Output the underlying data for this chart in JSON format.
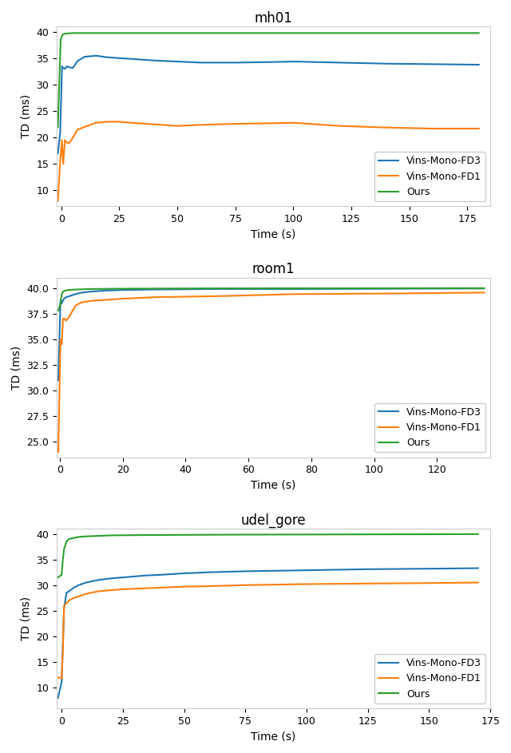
{
  "plots": [
    {
      "title": "mh01",
      "xlabel": "Time (s)",
      "ylabel": "TD (ms)",
      "xlim": [
        -2,
        185
      ],
      "ylim": [
        7,
        41
      ],
      "xticks": [
        0,
        25,
        50,
        75,
        100,
        125,
        150,
        175
      ],
      "yticks": [
        10,
        15,
        20,
        25,
        30,
        35,
        40
      ],
      "series": {
        "fd3": {
          "points": [
            [
              -1.5,
              17.0
            ],
            [
              -0.5,
              21.0
            ],
            [
              0.3,
              33.5
            ],
            [
              0.8,
              33.2
            ],
            [
              1.5,
              33.0
            ],
            [
              2.5,
              33.5
            ],
            [
              3.5,
              33.3
            ],
            [
              5.0,
              33.2
            ],
            [
              7.0,
              34.5
            ],
            [
              10.0,
              35.3
            ],
            [
              15.0,
              35.5
            ],
            [
              20.0,
              35.2
            ],
            [
              30.0,
              34.9
            ],
            [
              40.0,
              34.6
            ],
            [
              50.0,
              34.4
            ],
            [
              60.0,
              34.2
            ],
            [
              75.0,
              34.2
            ],
            [
              90.0,
              34.3
            ],
            [
              100.0,
              34.4
            ],
            [
              120.0,
              34.2
            ],
            [
              140.0,
              34.0
            ],
            [
              160.0,
              33.9
            ],
            [
              180.0,
              33.8
            ]
          ],
          "color": "#1f77b4"
        },
        "fd1": {
          "points": [
            [
              -1.5,
              8.0
            ],
            [
              -0.5,
              15.5
            ],
            [
              0.2,
              19.5
            ],
            [
              0.8,
              15.0
            ],
            [
              1.5,
              19.5
            ],
            [
              2.5,
              19.0
            ],
            [
              3.5,
              19.0
            ],
            [
              5.0,
              20.0
            ],
            [
              7.0,
              21.5
            ],
            [
              10.0,
              22.0
            ],
            [
              15.0,
              22.8
            ],
            [
              20.0,
              23.0
            ],
            [
              25.0,
              23.0
            ],
            [
              30.0,
              22.8
            ],
            [
              40.0,
              22.5
            ],
            [
              50.0,
              22.2
            ],
            [
              60.0,
              22.4
            ],
            [
              75.0,
              22.6
            ],
            [
              90.0,
              22.7
            ],
            [
              100.0,
              22.8
            ],
            [
              120.0,
              22.2
            ],
            [
              140.0,
              21.9
            ],
            [
              160.0,
              21.7
            ],
            [
              180.0,
              21.7
            ]
          ],
          "color": "#ff7f0e"
        },
        "ours": {
          "points": [
            [
              -1.5,
              22.0
            ],
            [
              -0.3,
              38.5
            ],
            [
              0.5,
              39.5
            ],
            [
              1.0,
              39.6
            ],
            [
              2.0,
              39.7
            ],
            [
              5.0,
              39.8
            ],
            [
              10.0,
              39.8
            ],
            [
              30.0,
              39.8
            ],
            [
              60.0,
              39.8
            ],
            [
              100.0,
              39.8
            ],
            [
              140.0,
              39.8
            ],
            [
              180.0,
              39.8
            ]
          ],
          "color": "#2ca02c"
        }
      }
    },
    {
      "title": "room1",
      "xlabel": "Time (s)",
      "ylabel": "TD (ms)",
      "xlim": [
        -1,
        137
      ],
      "ylim": [
        23.5,
        41
      ],
      "xticks": [
        0,
        20,
        40,
        60,
        80,
        100,
        120
      ],
      "yticks": [
        25.0,
        27.5,
        30.0,
        32.5,
        35.0,
        37.5,
        40.0
      ],
      "series": {
        "fd3": {
          "points": [
            [
              -0.5,
              31.0
            ],
            [
              0.2,
              38.8
            ],
            [
              0.6,
              38.5
            ],
            [
              1.0,
              38.8
            ],
            [
              1.5,
              39.0
            ],
            [
              2.0,
              39.1
            ],
            [
              3.0,
              39.2
            ],
            [
              5.0,
              39.4
            ],
            [
              7.0,
              39.55
            ],
            [
              10.0,
              39.65
            ],
            [
              15.0,
              39.75
            ],
            [
              20.0,
              39.8
            ],
            [
              30.0,
              39.85
            ],
            [
              50.0,
              39.9
            ],
            [
              75.0,
              39.9
            ],
            [
              100.0,
              39.92
            ],
            [
              120.0,
              39.94
            ],
            [
              135.0,
              39.95
            ]
          ],
          "color": "#1f77b4"
        },
        "fd1": {
          "points": [
            [
              -0.5,
              24.0
            ],
            [
              0.2,
              35.0
            ],
            [
              0.6,
              34.5
            ],
            [
              1.0,
              37.0
            ],
            [
              1.5,
              37.0
            ],
            [
              2.0,
              36.8
            ],
            [
              3.0,
              37.2
            ],
            [
              5.0,
              38.3
            ],
            [
              7.0,
              38.6
            ],
            [
              10.0,
              38.75
            ],
            [
              15.0,
              38.85
            ],
            [
              20.0,
              38.95
            ],
            [
              30.0,
              39.1
            ],
            [
              50.0,
              39.2
            ],
            [
              75.0,
              39.4
            ],
            [
              100.0,
              39.45
            ],
            [
              120.0,
              39.5
            ],
            [
              135.0,
              39.55
            ]
          ],
          "color": "#ff7f0e"
        },
        "ours": {
          "points": [
            [
              -0.5,
              37.8
            ],
            [
              0.2,
              38.5
            ],
            [
              0.6,
              39.4
            ],
            [
              1.0,
              39.65
            ],
            [
              2.0,
              39.78
            ],
            [
              5.0,
              39.85
            ],
            [
              10.0,
              39.9
            ],
            [
              20.0,
              39.93
            ],
            [
              50.0,
              39.96
            ],
            [
              100.0,
              39.97
            ],
            [
              135.0,
              39.98
            ]
          ],
          "color": "#2ca02c"
        }
      }
    },
    {
      "title": "udel_gore",
      "xlabel": "Time (s)",
      "ylabel": "TD (ms)",
      "xlim": [
        -2,
        175
      ],
      "ylim": [
        6,
        41
      ],
      "xticks": [
        0,
        25,
        50,
        75,
        100,
        125,
        150,
        175
      ],
      "yticks": [
        10,
        15,
        20,
        25,
        30,
        35,
        40
      ],
      "series": {
        "fd3": {
          "points": [
            [
              -1.5,
              8.0
            ],
            [
              0.0,
              11.0
            ],
            [
              0.5,
              18.5
            ],
            [
              1.0,
              25.5
            ],
            [
              2.0,
              28.5
            ],
            [
              3.0,
              28.8
            ],
            [
              5.0,
              29.5
            ],
            [
              7.0,
              30.0
            ],
            [
              10.0,
              30.5
            ],
            [
              15.0,
              31.0
            ],
            [
              20.0,
              31.3
            ],
            [
              25.0,
              31.5
            ],
            [
              30.0,
              31.7
            ],
            [
              35.0,
              31.9
            ],
            [
              40.0,
              32.0
            ],
            [
              50.0,
              32.3
            ],
            [
              60.0,
              32.5
            ],
            [
              75.0,
              32.7
            ],
            [
              100.0,
              32.9
            ],
            [
              125.0,
              33.1
            ],
            [
              150.0,
              33.2
            ],
            [
              170.0,
              33.3
            ]
          ],
          "color": "#1f77b4"
        },
        "fd1": {
          "points": [
            [
              -1.5,
              12.0
            ],
            [
              0.0,
              11.8
            ],
            [
              0.5,
              17.0
            ],
            [
              1.0,
              26.0
            ],
            [
              2.0,
              26.5
            ],
            [
              3.0,
              27.0
            ],
            [
              5.0,
              27.5
            ],
            [
              7.0,
              27.8
            ],
            [
              10.0,
              28.3
            ],
            [
              15.0,
              28.8
            ],
            [
              20.0,
              29.0
            ],
            [
              25.0,
              29.2
            ],
            [
              30.0,
              29.3
            ],
            [
              35.0,
              29.4
            ],
            [
              40.0,
              29.5
            ],
            [
              50.0,
              29.7
            ],
            [
              60.0,
              29.8
            ],
            [
              75.0,
              30.0
            ],
            [
              100.0,
              30.2
            ],
            [
              125.0,
              30.3
            ],
            [
              150.0,
              30.4
            ],
            [
              170.0,
              30.5
            ]
          ],
          "color": "#ff7f0e"
        },
        "ours": {
          "points": [
            [
              -1.5,
              31.5
            ],
            [
              0.0,
              32.0
            ],
            [
              0.5,
              35.0
            ],
            [
              1.0,
              37.0
            ],
            [
              2.0,
              38.5
            ],
            [
              3.0,
              39.0
            ],
            [
              5.0,
              39.2
            ],
            [
              7.0,
              39.4
            ],
            [
              10.0,
              39.5
            ],
            [
              15.0,
              39.6
            ],
            [
              20.0,
              39.7
            ],
            [
              30.0,
              39.75
            ],
            [
              50.0,
              39.8
            ],
            [
              75.0,
              39.85
            ],
            [
              100.0,
              39.87
            ],
            [
              125.0,
              39.9
            ],
            [
              150.0,
              39.92
            ],
            [
              170.0,
              39.95
            ]
          ],
          "color": "#2ca02c"
        }
      }
    }
  ],
  "legend_labels": [
    "Vins-Mono-FD3",
    "Vins-Mono-FD1",
    "Ours"
  ],
  "legend_keys": [
    "fd3",
    "fd1",
    "ours"
  ],
  "line_width": 1.5,
  "background_color": "#ffffff"
}
